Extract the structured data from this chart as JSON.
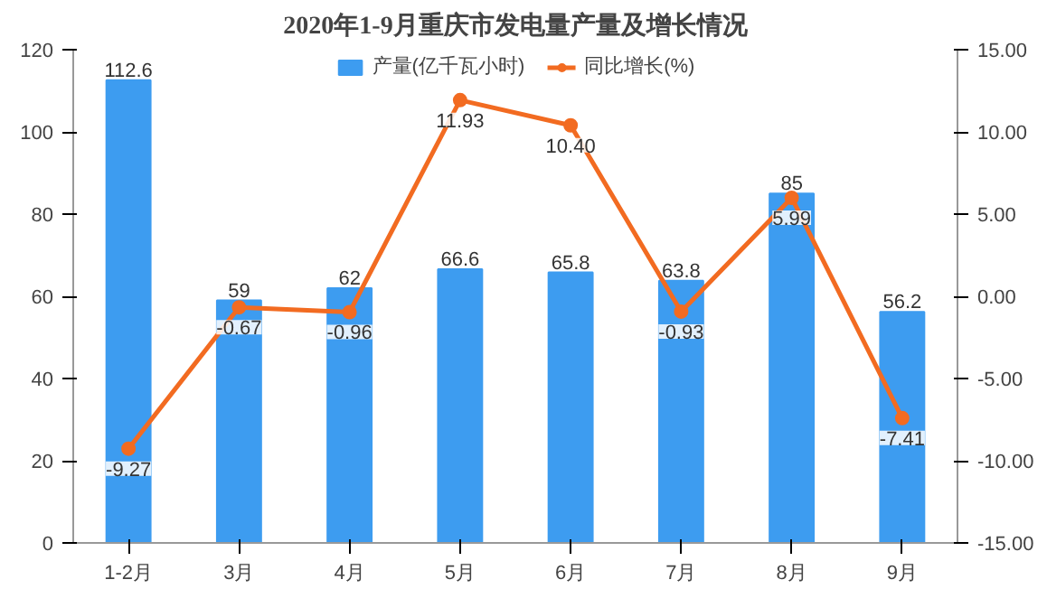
{
  "chart_data": {
    "type": "bar",
    "title": "2020年1-9月重庆市发电量产量及增长情况",
    "categories": [
      "1-2月",
      "3月",
      "4月",
      "5月",
      "6月",
      "7月",
      "8月",
      "9月"
    ],
    "ylim": [
      0,
      120
    ],
    "yticks": [
      0,
      20,
      40,
      60,
      80,
      100,
      120
    ],
    "y2lim": [
      -15,
      15
    ],
    "y2ticks": [
      {
        "value": -15,
        "label": "-15.00"
      },
      {
        "value": -10,
        "label": "-10.00"
      },
      {
        "value": -5,
        "label": "-5.00"
      },
      {
        "value": 0,
        "label": "0.00"
      },
      {
        "value": 5,
        "label": "5.00"
      },
      {
        "value": 10,
        "label": "10.00"
      },
      {
        "value": 15,
        "label": "15.00"
      }
    ],
    "legend": "top",
    "grid": false,
    "marker": "circle",
    "line_style": "solid",
    "series": [
      {
        "name": "产量(亿千瓦小时)",
        "color": "#3d9cf0",
        "values": [
          112.6,
          59,
          62,
          66.6,
          65.8,
          63.8,
          85,
          56.2
        ],
        "value_labels": [
          "112.6",
          "59",
          "62",
          "66.6",
          "65.8",
          "63.8",
          "85",
          "56.2"
        ]
      },
      {
        "name": "同比增长(%)",
        "type": "line",
        "axis": "y2",
        "color": "#f26b21",
        "values": [
          -9.27,
          -0.67,
          -0.96,
          11.93,
          10.4,
          -0.93,
          5.99,
          -7.41
        ],
        "value_labels": [
          "-9.27",
          "-0.67",
          "-0.96",
          "11.93",
          "10.40",
          "-0.93",
          "5.99",
          "-7.41"
        ]
      }
    ]
  }
}
